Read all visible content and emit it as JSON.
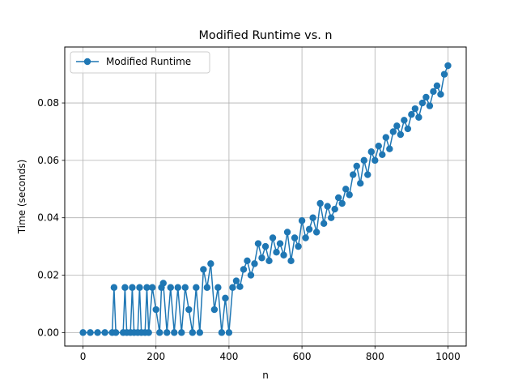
{
  "chart_data": {
    "type": "line",
    "title": "Modified Runtime vs. n",
    "xlabel": "n",
    "ylabel": "Time (seconds)",
    "xlim": [
      -50,
      1050
    ],
    "ylim": [
      -0.0047,
      0.0995
    ],
    "xticks": [
      0,
      200,
      400,
      600,
      800,
      1000
    ],
    "yticks": [
      0.0,
      0.02,
      0.04,
      0.06,
      0.08
    ],
    "xtick_labels": [
      "0",
      "200",
      "400",
      "600",
      "800",
      "1000"
    ],
    "ytick_labels": [
      "0.00",
      "0.02",
      "0.04",
      "0.06",
      "0.08"
    ],
    "grid": true,
    "legend_position": "upper-left",
    "series": [
      {
        "name": "Modified Runtime",
        "color": "#1f77b4",
        "marker": "circle",
        "x": [
          0,
          20,
          40,
          60,
          80,
          85,
          90,
          110,
          115,
          120,
          130,
          135,
          140,
          150,
          155,
          160,
          170,
          175,
          180,
          190,
          200,
          210,
          215,
          220,
          230,
          240,
          250,
          260,
          270,
          280,
          290,
          300,
          310,
          320,
          330,
          340,
          350,
          360,
          370,
          380,
          390,
          400,
          410,
          420,
          430,
          440,
          450,
          460,
          470,
          480,
          490,
          500,
          510,
          520,
          530,
          540,
          550,
          560,
          570,
          580,
          590,
          600,
          610,
          620,
          630,
          640,
          650,
          660,
          670,
          680,
          690,
          700,
          710,
          720,
          730,
          740,
          750,
          760,
          770,
          780,
          790,
          800,
          810,
          820,
          830,
          840,
          850,
          860,
          870,
          880,
          890,
          900,
          910,
          920,
          930,
          940,
          950,
          960,
          970,
          980,
          990,
          1000
        ],
        "y": [
          0.0,
          0.0,
          0.0,
          0.0,
          0.0,
          0.0157,
          0.0,
          0.0,
          0.0157,
          0.0,
          0.0,
          0.0157,
          0.0,
          0.0,
          0.0157,
          0.0,
          0.0,
          0.0157,
          0.0,
          0.0157,
          0.008,
          0.0,
          0.0157,
          0.0172,
          0.0,
          0.0157,
          0.0,
          0.0157,
          0.0,
          0.0157,
          0.008,
          0.0,
          0.0157,
          0.0,
          0.022,
          0.0157,
          0.024,
          0.008,
          0.0157,
          0.0,
          0.012,
          0.0,
          0.0157,
          0.018,
          0.016,
          0.022,
          0.025,
          0.02,
          0.024,
          0.031,
          0.026,
          0.03,
          0.025,
          0.033,
          0.028,
          0.031,
          0.027,
          0.035,
          0.025,
          0.033,
          0.03,
          0.039,
          0.033,
          0.036,
          0.04,
          0.035,
          0.045,
          0.038,
          0.044,
          0.04,
          0.043,
          0.047,
          0.045,
          0.05,
          0.048,
          0.055,
          0.058,
          0.052,
          0.06,
          0.055,
          0.063,
          0.06,
          0.065,
          0.062,
          0.068,
          0.064,
          0.07,
          0.072,
          0.069,
          0.074,
          0.071,
          0.076,
          0.078,
          0.075,
          0.08,
          0.082,
          0.079,
          0.084,
          0.086,
          0.083,
          0.09,
          0.093
        ]
      }
    ]
  }
}
